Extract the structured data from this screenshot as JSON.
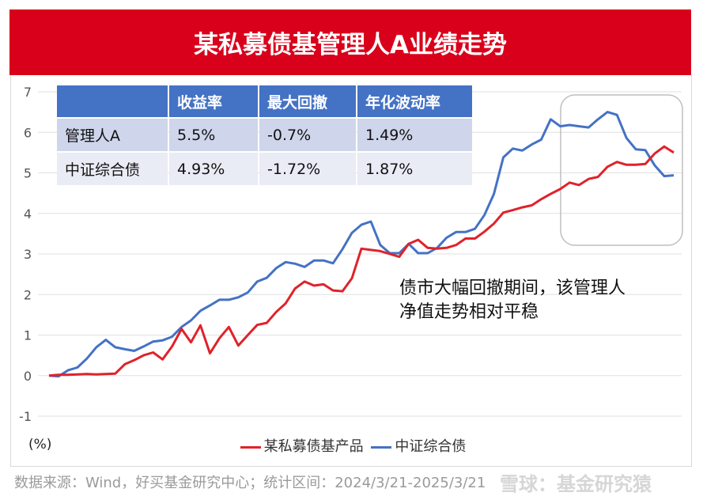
{
  "title": "某私募债基管理人A业绩走势",
  "table": {
    "headers": [
      "",
      "收益率",
      "最大回撤",
      "年化波动率"
    ],
    "rows": [
      [
        "管理人A",
        "5.5%",
        "-0.7%",
        "1.49%"
      ],
      [
        "中证综合债",
        "4.93%",
        "-1.72%",
        "1.87%"
      ]
    ],
    "header_color": "#4472c4"
  },
  "annotation": [
    "债市大幅回撤期间，该管理人",
    "净值走势相对平稳"
  ],
  "unit_label": "(%)",
  "footer": "数据来源：Wind，好买基金研究中心；统计区间：2024/3/21-2025/3/21",
  "watermark": "雪球：基金研究猿",
  "chart_data": {
    "type": "line",
    "ylim": [
      -1,
      7
    ],
    "yticks": [
      "-1",
      "0",
      "1",
      "2",
      "3",
      "4",
      "5",
      "6",
      "7"
    ],
    "grid": true,
    "legend": "bottom",
    "series": [
      {
        "name": "某私募债基产品",
        "color": "#e0222a",
        "values": [
          0,
          0.02,
          0.02,
          0.03,
          0.04,
          0.03,
          0.04,
          0.05,
          0.28,
          0.38,
          0.5,
          0.57,
          0.4,
          0.72,
          1.15,
          0.82,
          1.24,
          0.55,
          0.92,
          1.2,
          0.74,
          1.0,
          1.25,
          1.3,
          1.57,
          1.78,
          2.15,
          2.32,
          2.22,
          2.25,
          2.1,
          2.08,
          2.4,
          3.13,
          3.1,
          3.07,
          3.0,
          2.93,
          3.25,
          3.35,
          3.15,
          3.13,
          3.15,
          3.22,
          3.38,
          3.38,
          3.55,
          3.75,
          4.02,
          4.08,
          4.15,
          4.2,
          4.35,
          4.48,
          4.6,
          4.76,
          4.7,
          4.85,
          4.9,
          5.15,
          5.27,
          5.2,
          5.2,
          5.22,
          5.48,
          5.65,
          5.5
        ]
      },
      {
        "name": "中证综合债",
        "color": "#4472c4",
        "values": [
          0,
          -0.02,
          0.13,
          0.2,
          0.42,
          0.7,
          0.88,
          0.7,
          0.65,
          0.61,
          0.72,
          0.84,
          0.87,
          0.96,
          1.2,
          1.36,
          1.6,
          1.73,
          1.87,
          1.87,
          1.93,
          2.05,
          2.32,
          2.41,
          2.65,
          2.8,
          2.76,
          2.68,
          2.84,
          2.84,
          2.77,
          3.12,
          3.52,
          3.72,
          3.8,
          3.22,
          3.02,
          3.02,
          3.25,
          3.02,
          3.02,
          3.15,
          3.4,
          3.54,
          3.54,
          3.62,
          3.96,
          4.48,
          5.38,
          5.6,
          5.55,
          5.7,
          5.82,
          6.32,
          6.15,
          6.18,
          6.15,
          6.12,
          6.32,
          6.5,
          6.43,
          5.86,
          5.58,
          5.56,
          5.18,
          4.92,
          4.94
        ]
      }
    ]
  }
}
